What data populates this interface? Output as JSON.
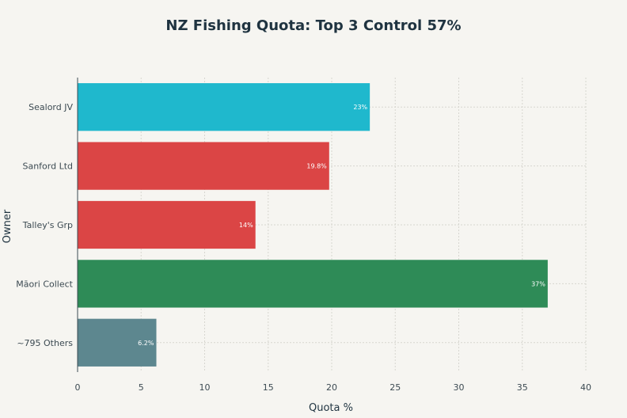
{
  "chart_data": {
    "type": "bar",
    "orientation": "horizontal",
    "title": "NZ Fishing Quota: Top 3 Control 57%",
    "xlabel": "Quota %",
    "ylabel": "Owner",
    "xlim": [
      0,
      40
    ],
    "xticks": [
      0,
      5,
      10,
      15,
      20,
      25,
      30,
      35,
      40
    ],
    "grid": true,
    "categories": [
      "Sealord JV",
      "Sanford Ltd",
      "Talley's Grp",
      "Māori Collect",
      "~795 Others"
    ],
    "values": [
      23,
      19.8,
      14,
      37,
      6.2
    ],
    "data_labels": [
      "23%",
      "19.8%",
      "14%",
      "37%",
      "6.2%"
    ],
    "colors": [
      "#1fb8cd",
      "#db4545",
      "#db4545",
      "#2e8b57",
      "#5d878f"
    ]
  }
}
